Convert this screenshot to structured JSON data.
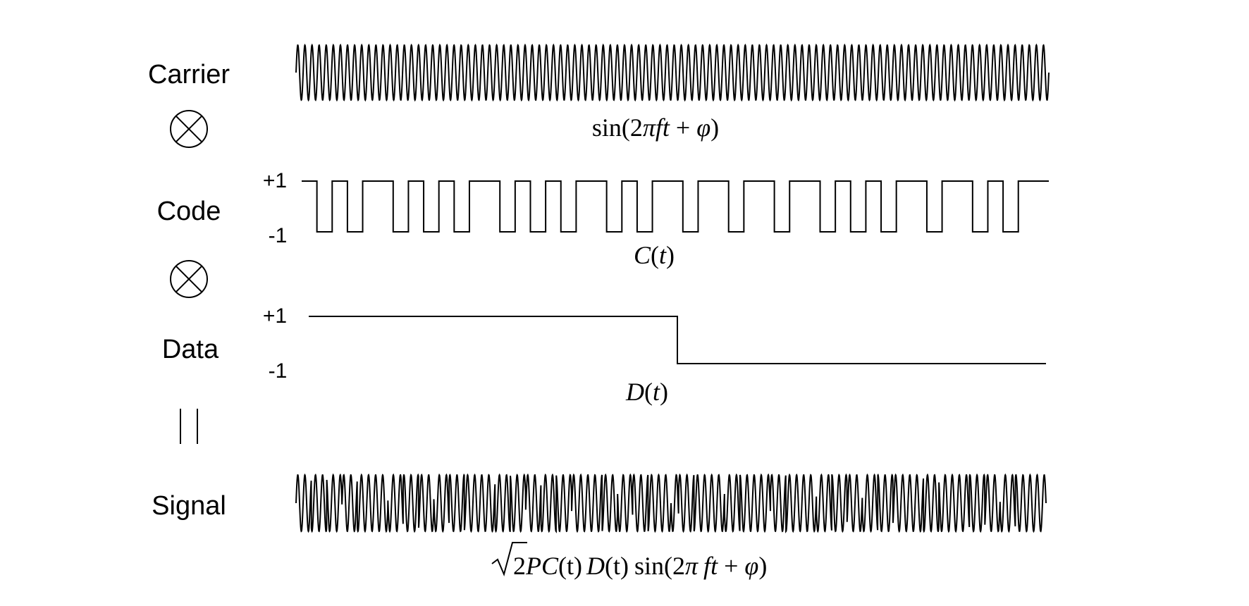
{
  "rows": {
    "carrier": {
      "label": "Carrier",
      "cycles": 106
    },
    "code": {
      "label": "Code",
      "high_label": "+1",
      "low_label": "-1",
      "chips": [
        1,
        -1,
        1,
        -1,
        1,
        1,
        -1,
        1,
        -1,
        1,
        -1,
        1,
        1,
        -1,
        1,
        -1,
        1,
        -1,
        1,
        1,
        -1,
        1,
        -1,
        1,
        1,
        -1,
        1,
        1,
        -1,
        1,
        1,
        -1,
        1,
        1,
        -1,
        1,
        -1,
        1,
        -1,
        1,
        1,
        -1,
        1,
        1,
        -1,
        1,
        -1,
        1,
        1
      ]
    },
    "data": {
      "label": "Data",
      "high_label": "+1",
      "low_label": "-1",
      "bits": [
        1,
        -1
      ]
    },
    "signal": {
      "label": "Signal"
    }
  },
  "formulas": {
    "carrier": {
      "fn": "sin",
      "open": "(2",
      "pi": "π",
      "f": "f",
      "t": "t",
      "plus": " + ",
      "phi": "φ",
      "close": ")"
    },
    "code": {
      "C": "C",
      "open": "(",
      "t": "t",
      "close": ")"
    },
    "data": {
      "D": "D",
      "open": "(",
      "t": "t",
      "close": ")"
    },
    "signal": {
      "radicand_num": "2",
      "radicand_P": "P",
      "C": "C",
      "t1": "(t)",
      "D": "D",
      "t2": "(t)",
      "fn": "sin",
      "open": "(2",
      "pi": "π",
      "f": "f",
      "t": "t",
      "plus": " + ",
      "phi": "φ",
      "close": ")"
    }
  },
  "operators": [
    "multiply",
    "multiply",
    "equals"
  ]
}
